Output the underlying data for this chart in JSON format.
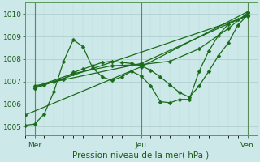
{
  "title": "Pression niveau de la mer( hPa )",
  "bg_color": "#cce8e8",
  "grid_major_color": "#aacccc",
  "grid_minor_color": "#bbdddd",
  "line_color": "#1a6b1a",
  "ylim": [
    1004.6,
    1010.5
  ],
  "yticks": [
    1005,
    1006,
    1007,
    1008,
    1009,
    1010
  ],
  "xlim": [
    0,
    96
  ],
  "xlabel_ticks": [
    4,
    48,
    92
  ],
  "xlabel_labels": [
    "Mer",
    "Jeu",
    "Ven"
  ],
  "vlines": [
    4,
    48,
    92
  ],
  "series": [
    [
      0,
      1005.05,
      4,
      1005.1,
      8,
      1005.55,
      12,
      1006.55,
      16,
      1007.9,
      20,
      1008.85,
      24,
      1008.55,
      28,
      1007.6,
      32,
      1007.2,
      36,
      1007.05,
      40,
      1007.2,
      44,
      1007.45,
      48,
      1007.25,
      52,
      1006.8,
      56,
      1006.1,
      60,
      1006.05,
      64,
      1006.2,
      68,
      1006.2,
      72,
      1007.45,
      76,
      1008.35,
      80,
      1009.05,
      84,
      1009.55,
      88,
      1009.75,
      92,
      1009.95
    ],
    [
      4,
      1006.7,
      8,
      1006.85,
      12,
      1007.0,
      16,
      1007.1,
      20,
      1007.4,
      24,
      1007.55,
      28,
      1007.7,
      32,
      1007.85,
      36,
      1007.9,
      40,
      1007.85,
      44,
      1007.8,
      48,
      1007.7,
      52,
      1007.5,
      56,
      1007.2,
      60,
      1006.85,
      64,
      1006.5,
      68,
      1006.3,
      72,
      1006.8,
      76,
      1007.45,
      80,
      1008.15,
      84,
      1008.7,
      88,
      1009.5,
      92,
      1009.95
    ],
    [
      4,
      1006.75,
      20,
      1007.35,
      36,
      1007.7,
      48,
      1007.75,
      60,
      1007.9,
      72,
      1008.45,
      84,
      1009.35,
      92,
      1010.05
    ],
    [
      0,
      1005.5,
      48,
      1007.65,
      92,
      1010.1
    ],
    [
      4,
      1006.8,
      48,
      1007.8,
      92,
      1009.95
    ],
    [
      4,
      1006.7,
      92,
      1009.9
    ]
  ],
  "marker": "D",
  "markersize": 2.5,
  "linewidth": 0.9
}
